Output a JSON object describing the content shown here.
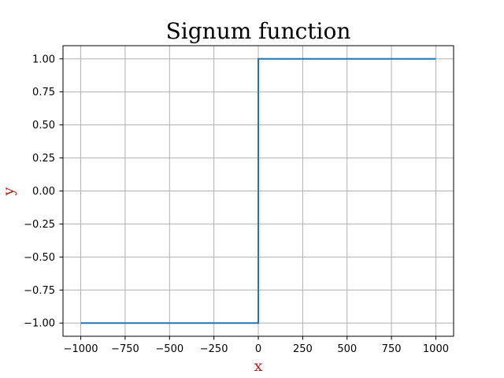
{
  "chart_data": {
    "type": "line",
    "title": "Signum function",
    "xlabel": "x",
    "ylabel": "y",
    "xlim": [
      -1100,
      1100
    ],
    "ylim": [
      -1.1,
      1.1
    ],
    "grid": true,
    "x_ticks": [
      -1000,
      -750,
      -500,
      -250,
      0,
      250,
      500,
      750,
      1000
    ],
    "x_tick_labels": [
      "−1000",
      "−750",
      "−500",
      "−250",
      "0",
      "250",
      "500",
      "750",
      "1000"
    ],
    "y_ticks": [
      1.0,
      0.75,
      0.5,
      0.25,
      0.0,
      -0.25,
      -0.5,
      -0.75,
      -1.0
    ],
    "y_tick_labels": [
      "1.00",
      "0.75",
      "0.50",
      "0.25",
      "0.00",
      "−0.25",
      "−0.50",
      "−0.75",
      "−1.00"
    ],
    "series": [
      {
        "x": [
          -1000,
          0,
          0,
          1000
        ],
        "y": [
          -1,
          -1,
          1,
          1
        ],
        "color": "#1f77b4"
      }
    ],
    "colors": {
      "line": "#1f77b4",
      "axis_label": "#b22222",
      "grid": "#b0b0b0"
    }
  }
}
